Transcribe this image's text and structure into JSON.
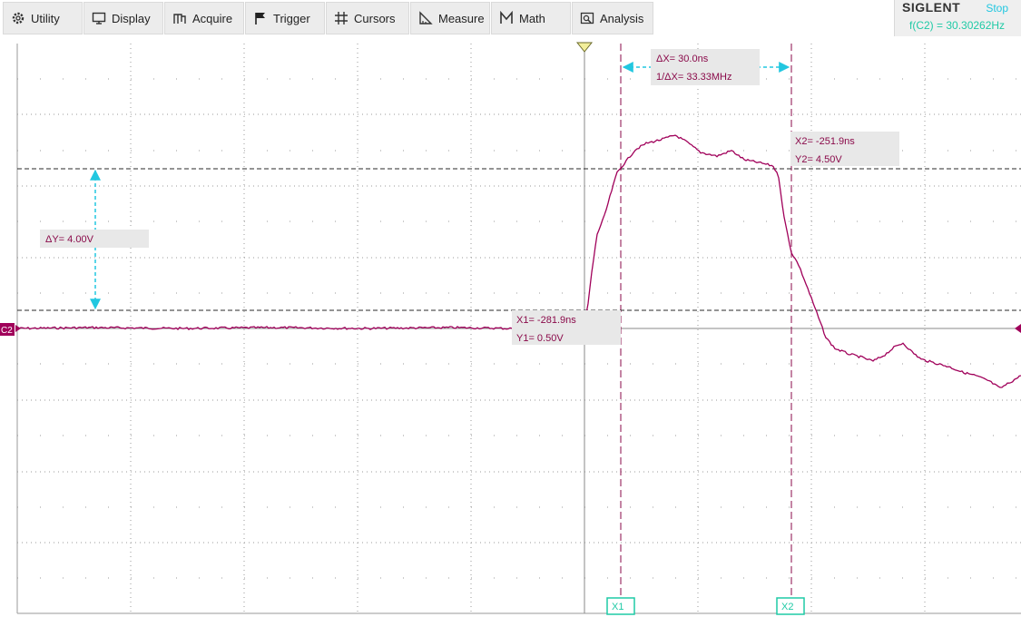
{
  "menu": [
    {
      "id": "utility",
      "label": "Utility",
      "icon": "gear-icon"
    },
    {
      "id": "display",
      "label": "Display",
      "icon": "monitor-icon"
    },
    {
      "id": "acquire",
      "label": "Acquire",
      "icon": "acquire-icon"
    },
    {
      "id": "trigger",
      "label": "Trigger",
      "icon": "flag-icon"
    },
    {
      "id": "cursors",
      "label": "Cursors",
      "icon": "crosshair-icon"
    },
    {
      "id": "measure",
      "label": "Measure",
      "icon": "ruler-icon"
    },
    {
      "id": "math",
      "label": "Math",
      "icon": "math-icon"
    },
    {
      "id": "analysis",
      "label": "Analysis",
      "icon": "analysis-icon"
    }
  ],
  "brand": {
    "logo": "SIGLENT",
    "run_state": "Stop",
    "frequency": "f(C2) = 30.30262Hz"
  },
  "channel": {
    "label": "C2",
    "color": "#a0005a"
  },
  "cursors": {
    "delta_x": "ΔX= 30.0ns",
    "inv_delta_x": "1/ΔX= 33.33MHz",
    "delta_y": "ΔY= 4.00V",
    "x1": "X1= -281.9ns",
    "y1": "Y1= 0.50V",
    "x2": "X2= -251.9ns",
    "y2": "Y2= 4.50V",
    "x1_tag": "X1",
    "x2_tag": "X2"
  },
  "colors": {
    "trace": "#a0005a",
    "cursor": "#8a0a4a",
    "measure_arrow": "#22c7e0",
    "tag": "#1fcaa6",
    "grid": "#999999"
  }
}
